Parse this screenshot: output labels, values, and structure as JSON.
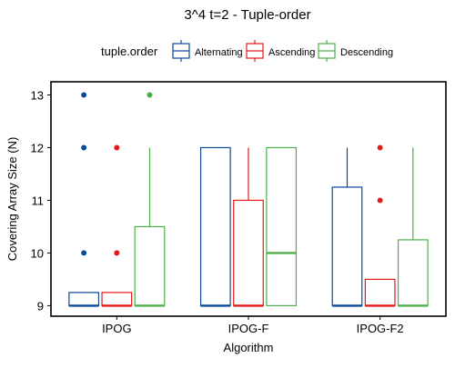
{
  "chart_data": {
    "type": "boxplot",
    "title": "3^4 t=2 - Tuple-order",
    "xlabel": "Algorithm",
    "ylabel": "Covering Array Size (N)",
    "ylim": [
      8.8,
      13.25
    ],
    "y_ticks": [
      9,
      10,
      11,
      12,
      13
    ],
    "categories": [
      "IPOG",
      "IPOG-F",
      "IPOG-F2"
    ],
    "legend": {
      "title": "tuple.order",
      "placement": "top"
    },
    "series": [
      {
        "name": "Alternating",
        "color": "#0A4A9A",
        "boxes": [
          {
            "category": "IPOG",
            "min": 9,
            "q1": 9,
            "median": 9,
            "q3": 9.25,
            "max": 9.25,
            "outliers": [
              10,
              12,
              13
            ]
          },
          {
            "category": "IPOG-F",
            "min": 9,
            "q1": 9,
            "median": 9,
            "q3": 12,
            "max": 12,
            "outliers": []
          },
          {
            "category": "IPOG-F2",
            "min": 9,
            "q1": 9,
            "median": 9,
            "q3": 11.25,
            "max": 12,
            "outliers": []
          }
        ]
      },
      {
        "name": "Ascending",
        "color": "#E41A1C",
        "boxes": [
          {
            "category": "IPOG",
            "min": 9,
            "q1": 9,
            "median": 9,
            "q3": 9.25,
            "max": 9.25,
            "outliers": [
              10,
              12
            ]
          },
          {
            "category": "IPOG-F",
            "min": 9,
            "q1": 9,
            "median": 9,
            "q3": 11,
            "max": 12,
            "outliers": []
          },
          {
            "category": "IPOG-F2",
            "min": 9,
            "q1": 9,
            "median": 9,
            "q3": 9.5,
            "max": 9.5,
            "outliers": [
              11,
              12
            ]
          }
        ]
      },
      {
        "name": "Descending",
        "color": "#4DAF4A",
        "boxes": [
          {
            "category": "IPOG",
            "min": 9,
            "q1": 9,
            "median": 9,
            "q3": 10.5,
            "max": 12,
            "outliers": [
              13
            ]
          },
          {
            "category": "IPOG-F",
            "min": 9,
            "q1": 9,
            "median": 10,
            "q3": 12,
            "max": 12,
            "outliers": []
          },
          {
            "category": "IPOG-F2",
            "min": 9,
            "q1": 9,
            "median": 9,
            "q3": 10.25,
            "max": 12,
            "outliers": []
          }
        ]
      }
    ]
  }
}
